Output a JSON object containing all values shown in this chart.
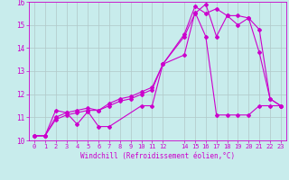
{
  "xlabel": "Windchill (Refroidissement éolien,°C)",
  "xlim": [
    -0.5,
    23.5
  ],
  "ylim": [
    10,
    16
  ],
  "xticks": [
    0,
    1,
    2,
    3,
    4,
    5,
    6,
    7,
    8,
    9,
    10,
    11,
    12,
    14,
    15,
    16,
    17,
    18,
    19,
    20,
    21,
    22,
    23
  ],
  "yticks": [
    10,
    11,
    12,
    13,
    14,
    15,
    16
  ],
  "background_color": "#c8ecec",
  "grid_color": "#b0c8c8",
  "line_color": "#cc00cc",
  "line1_x": [
    0,
    1,
    2,
    3,
    4,
    5,
    6,
    7,
    10,
    11,
    12,
    14,
    15,
    16,
    17,
    18,
    19,
    20,
    21,
    22,
    23
  ],
  "line1_y": [
    10.2,
    10.2,
    11.3,
    11.2,
    10.7,
    11.25,
    10.6,
    10.6,
    11.5,
    11.5,
    13.3,
    13.7,
    15.55,
    14.5,
    11.1,
    11.1,
    11.1,
    11.1,
    11.5,
    11.5,
    11.5
  ],
  "line2_x": [
    0,
    1,
    2,
    3,
    4,
    5,
    6,
    7,
    8,
    9,
    10,
    11,
    12,
    14,
    15,
    16,
    17,
    18,
    19,
    20,
    21,
    22,
    23
  ],
  "line2_y": [
    10.2,
    10.2,
    10.9,
    11.1,
    11.2,
    11.3,
    11.3,
    11.5,
    11.7,
    11.8,
    12.0,
    12.2,
    13.3,
    14.5,
    15.5,
    15.9,
    14.5,
    15.4,
    15.0,
    15.3,
    13.8,
    11.8,
    11.5
  ],
  "line3_x": [
    0,
    1,
    2,
    3,
    4,
    5,
    6,
    7,
    8,
    9,
    10,
    11,
    12,
    14,
    15,
    16,
    17,
    18,
    19,
    20,
    21,
    22,
    23
  ],
  "line3_y": [
    10.2,
    10.2,
    11.0,
    11.2,
    11.3,
    11.4,
    11.3,
    11.6,
    11.8,
    11.9,
    12.1,
    12.3,
    13.3,
    14.6,
    15.8,
    15.5,
    15.7,
    15.4,
    15.4,
    15.3,
    14.8,
    11.8,
    11.5
  ],
  "marker": "D",
  "markersize": 2,
  "linewidth": 0.8,
  "tick_fontsize": 5,
  "xlabel_fontsize": 5.5
}
